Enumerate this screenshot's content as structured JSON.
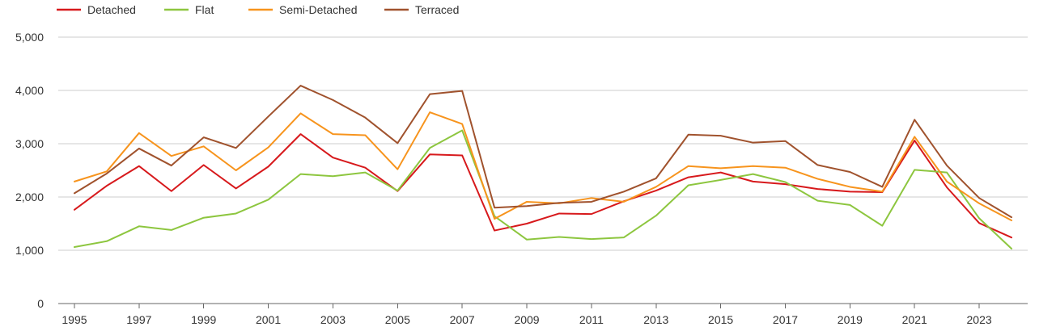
{
  "chart_data": {
    "type": "line",
    "title": "",
    "xlabel": "",
    "ylabel": "",
    "x": [
      1995,
      1996,
      1997,
      1998,
      1999,
      2000,
      2001,
      2002,
      2003,
      2004,
      2005,
      2006,
      2007,
      2008,
      2009,
      2010,
      2011,
      2012,
      2013,
      2014,
      2015,
      2016,
      2017,
      2018,
      2019,
      2020,
      2021,
      2022,
      2023,
      2024
    ],
    "x_ticks": [
      "1995",
      "1997",
      "1999",
      "2001",
      "2003",
      "2005",
      "2007",
      "2009",
      "2011",
      "2013",
      "2015",
      "2017",
      "2019",
      "2021",
      "2023"
    ],
    "y_ticks": [
      "0",
      "1,000",
      "2,000",
      "3,000",
      "4,000",
      "5,000"
    ],
    "xlim": [
      1994.5,
      2024.5
    ],
    "ylim": [
      0,
      5000
    ],
    "grid": "horizontal",
    "legend_position": "top-left",
    "series": [
      {
        "name": "Detached",
        "color": "#d7191c",
        "values": [
          1760,
          2210,
          2580,
          2110,
          2600,
          2160,
          2570,
          3180,
          2740,
          2550,
          2110,
          2800,
          2780,
          1370,
          1500,
          1690,
          1680,
          1920,
          2120,
          2370,
          2460,
          2290,
          2240,
          2150,
          2100,
          2090,
          3060,
          2180,
          1510,
          1240
        ]
      },
      {
        "name": "Flat",
        "color": "#8dc63f",
        "values": [
          1060,
          1170,
          1450,
          1380,
          1610,
          1690,
          1950,
          2430,
          2390,
          2460,
          2120,
          2920,
          3250,
          1640,
          1200,
          1250,
          1210,
          1240,
          1650,
          2220,
          2320,
          2430,
          2280,
          1930,
          1850,
          1460,
          2510,
          2460,
          1600,
          1030
        ]
      },
      {
        "name": "Semi-Detached",
        "color": "#f7941d",
        "values": [
          2290,
          2480,
          3200,
          2770,
          2950,
          2500,
          2930,
          3570,
          3180,
          3160,
          2520,
          3590,
          3370,
          1590,
          1910,
          1880,
          1980,
          1910,
          2190,
          2580,
          2540,
          2580,
          2550,
          2340,
          2190,
          2100,
          3130,
          2290,
          1880,
          1560
        ]
      },
      {
        "name": "Terraced",
        "color": "#a0522d",
        "values": [
          2070,
          2440,
          2910,
          2590,
          3120,
          2920,
          3510,
          4090,
          3820,
          3490,
          3010,
          3930,
          3990,
          1800,
          1830,
          1890,
          1910,
          2100,
          2350,
          3170,
          3150,
          3020,
          3050,
          2600,
          2470,
          2190,
          3450,
          2590,
          1980,
          1620
        ]
      }
    ]
  }
}
